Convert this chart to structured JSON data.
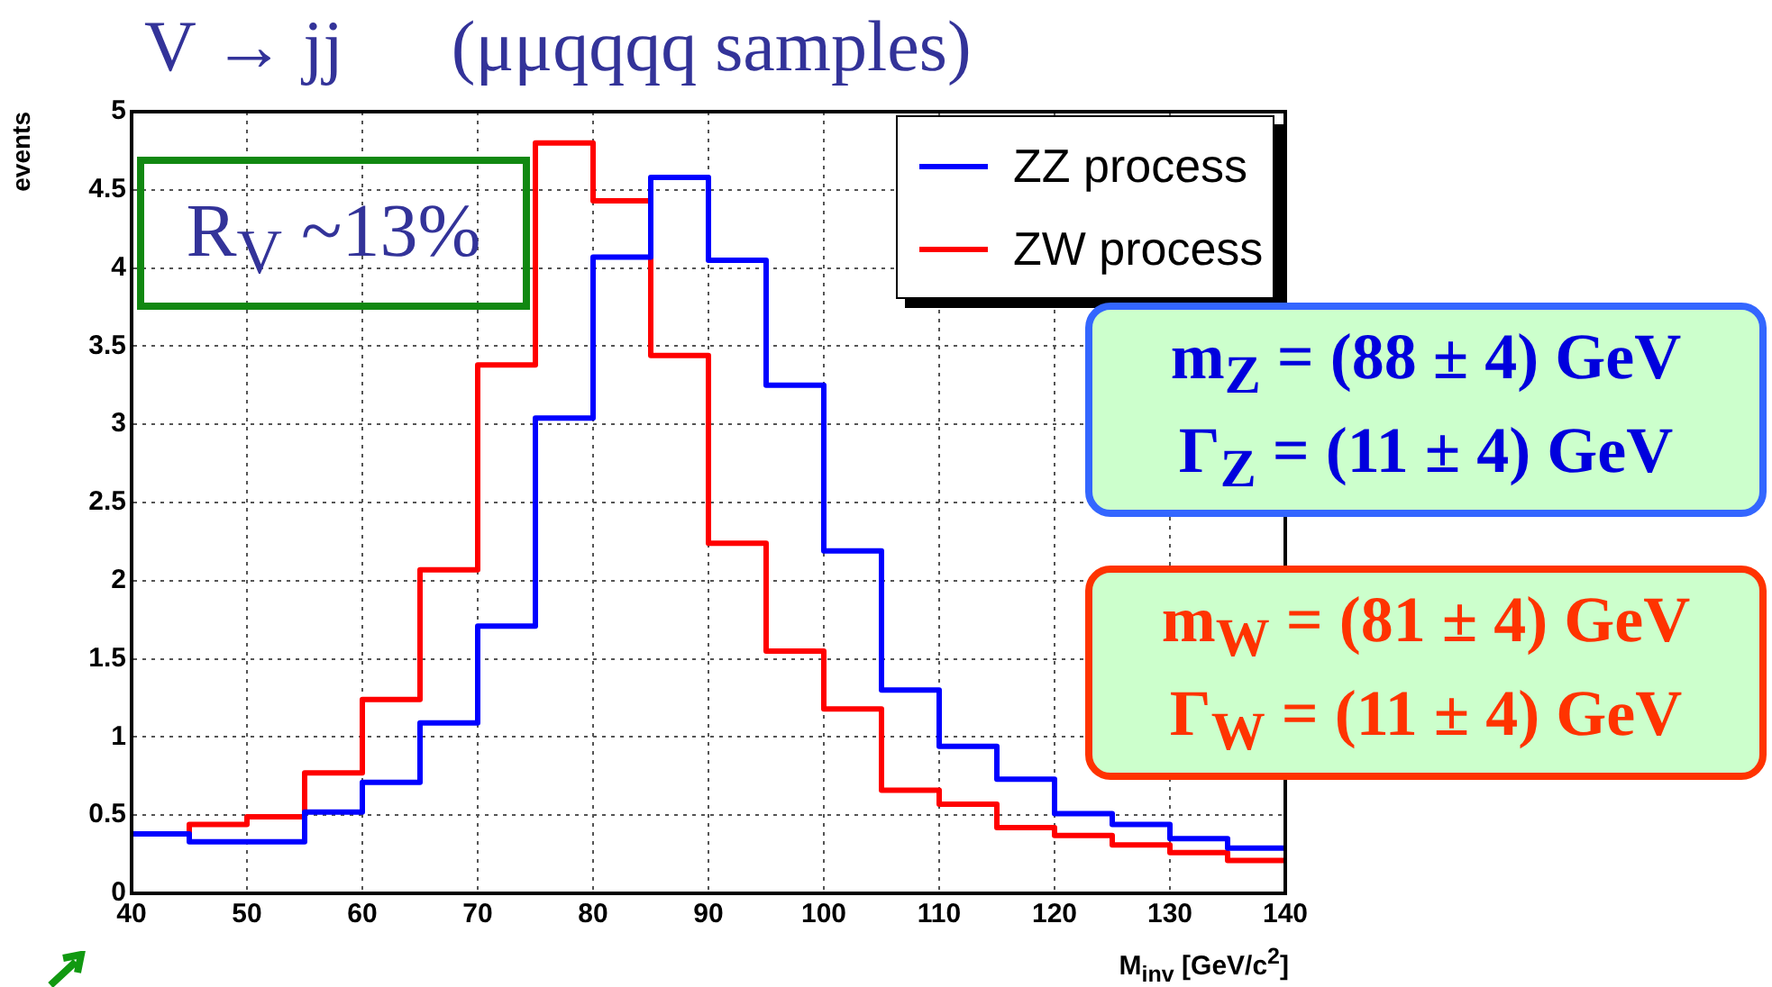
{
  "chart_data": {
    "type": "histogram",
    "title": "V → jj      (μμqqqq samples)",
    "xlabel": "M$_{inv}$  [GeV/c$^{2}$]",
    "ylabel": "events",
    "bins": [
      40,
      45,
      50,
      55,
      60,
      65,
      70,
      75,
      80,
      85,
      90,
      95,
      100,
      105,
      110,
      115,
      120,
      125,
      130,
      135,
      140
    ],
    "series": [
      {
        "name": "ZZ process",
        "color": "#0000ff",
        "values": [
          0.38,
          0.33,
          0.33,
          0.52,
          0.71,
          1.09,
          1.71,
          3.04,
          4.07,
          4.58,
          4.05,
          3.25,
          2.19,
          1.3,
          0.94,
          0.73,
          0.51,
          0.44,
          0.35,
          0.29
        ]
      },
      {
        "name": "ZW process",
        "color": "#ff0000",
        "values": [
          0.38,
          0.44,
          0.49,
          0.77,
          1.24,
          2.07,
          3.38,
          4.8,
          4.43,
          3.44,
          2.24,
          1.55,
          1.18,
          0.66,
          0.57,
          0.42,
          0.37,
          0.31,
          0.26,
          0.21
        ]
      }
    ],
    "xlim": [
      40,
      140
    ],
    "xticks": [
      40,
      50,
      60,
      70,
      80,
      90,
      100,
      110,
      120,
      130,
      140
    ],
    "ylim": [
      0,
      5
    ],
    "yticks": [
      0,
      0.5,
      1,
      1.5,
      2,
      2.5,
      3,
      3.5,
      4,
      4.5,
      5
    ],
    "grid": true,
    "legend": "top right",
    "annotations": [
      "R$_{V}$ ~13%",
      "m$_{Z}$ = (88 ± 4) GeV",
      "Γ$_{Z}$ = (11 ± 4) GeV",
      "m$_{W}$ = (81 ± 4) GeV",
      "Γ$_{W}$ = (11 ± 4) GeV"
    ]
  }
}
